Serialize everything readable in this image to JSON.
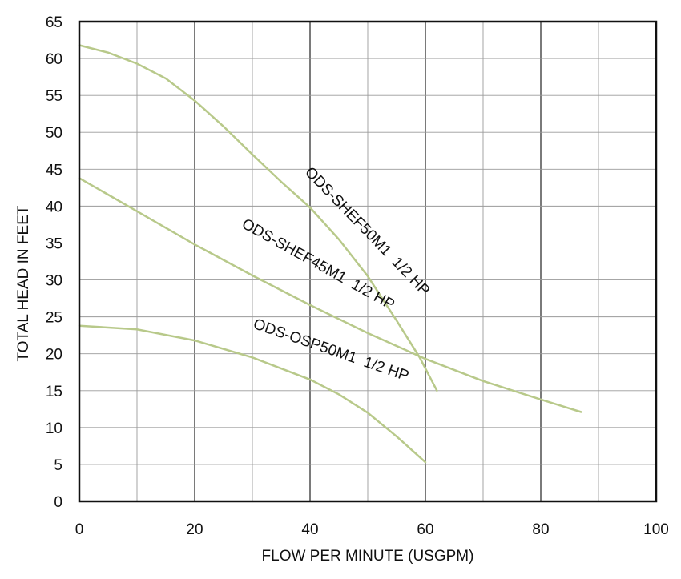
{
  "chart_data": {
    "type": "line",
    "title": "",
    "xlabel": "FLOW PER MINUTE (USGPM)",
    "ylabel": "TOTAL HEAD IN FEET",
    "xlim": [
      0,
      100
    ],
    "ylim": [
      0,
      65
    ],
    "x_ticks": [
      0,
      20,
      40,
      60,
      80,
      100
    ],
    "x_tick_labels": [
      "0",
      "20",
      "40",
      "60",
      "80",
      "100"
    ],
    "x_minor_step": 10,
    "y_ticks": [
      0,
      5,
      10,
      15,
      20,
      25,
      30,
      35,
      40,
      45,
      50,
      55,
      60,
      65
    ],
    "y_tick_labels": [
      "0",
      "5",
      "10",
      "15",
      "20",
      "25",
      "30",
      "35",
      "40",
      "45",
      "50",
      "55",
      "60",
      "65"
    ],
    "grid": true,
    "curve_color": "#b8c98a",
    "series": [
      {
        "name": "ODS-SHEF50M1  1/2 HP",
        "label_anchor": [
          39,
          44.5
        ],
        "label_angle_deg": 46,
        "points": [
          [
            0,
            61.8
          ],
          [
            5,
            60.8
          ],
          [
            10,
            59.3
          ],
          [
            15,
            57.3
          ],
          [
            20,
            54.3
          ],
          [
            25,
            50.8
          ],
          [
            30,
            47.0
          ],
          [
            35,
            43.3
          ],
          [
            40,
            39.8
          ],
          [
            45,
            35.5
          ],
          [
            50,
            30.5
          ],
          [
            55,
            24.5
          ],
          [
            59,
            19.5
          ],
          [
            62,
            15.0
          ]
        ]
      },
      {
        "name": "ODS-SHEF45M1  1/2 HP",
        "label_anchor": [
          28,
          37.2
        ],
        "label_angle_deg": 29,
        "points": [
          [
            0,
            43.8
          ],
          [
            10,
            39.3
          ],
          [
            20,
            34.8
          ],
          [
            30,
            30.6
          ],
          [
            40,
            26.6
          ],
          [
            50,
            22.8
          ],
          [
            60,
            19.3
          ],
          [
            70,
            16.3
          ],
          [
            80,
            13.8
          ],
          [
            87,
            12.1
          ]
        ]
      },
      {
        "name": "ODS-OSP50M1  1/2 HP",
        "label_anchor": [
          30,
          23.5
        ],
        "label_angle_deg": 19,
        "points": [
          [
            0,
            23.8
          ],
          [
            10,
            23.3
          ],
          [
            20,
            21.8
          ],
          [
            30,
            19.5
          ],
          [
            40,
            16.5
          ],
          [
            45,
            14.5
          ],
          [
            50,
            12.0
          ],
          [
            55,
            8.8
          ],
          [
            60,
            5.3
          ]
        ]
      }
    ]
  }
}
